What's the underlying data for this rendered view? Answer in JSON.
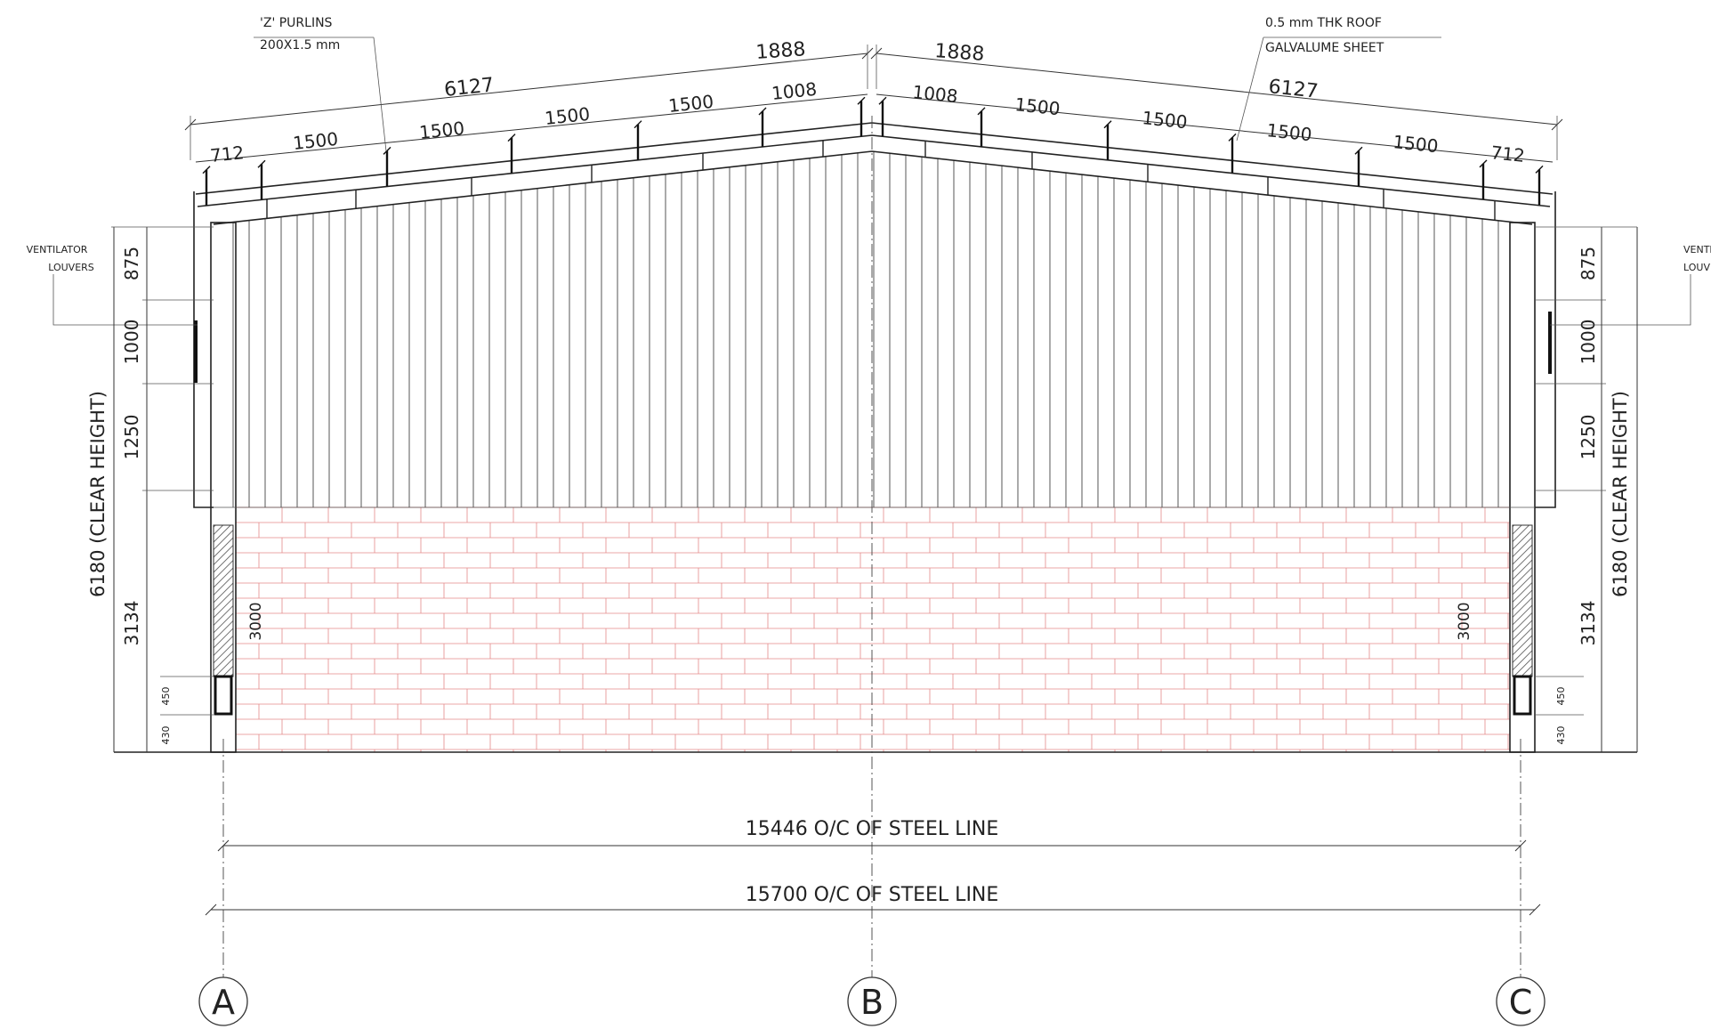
{
  "roof_labels": {
    "purlins": [
      "'Z' PURLINS",
      "200X1.5 mm"
    ],
    "roof_sheet": [
      "0.5 mm THK ROOF",
      "GALVALUME SHEET"
    ]
  },
  "ventilator_label": [
    "VENTILATOR",
    "LOUVERS"
  ],
  "roof_dims": {
    "half_slope": "6127",
    "ridge": "1888",
    "spacing": "1500",
    "near_ridge": "1008",
    "eave": "712"
  },
  "side_dims": {
    "clear_height": "6180 (CLEAR HEIGHT)",
    "d875": "875",
    "d1000": "1000",
    "d1250": "1250",
    "d3134": "3134",
    "d3000": "3000",
    "d450": "450",
    "d430": "430"
  },
  "bottom_dims": {
    "steel_line_inner": "15446 O/C OF STEEL LINE",
    "steel_line_outer": "15700 O/C OF STEEL LINE"
  },
  "grid_labels": [
    "A",
    "B",
    "C"
  ],
  "colors": {
    "brick": "#e58a8a",
    "line": "#333333"
  }
}
